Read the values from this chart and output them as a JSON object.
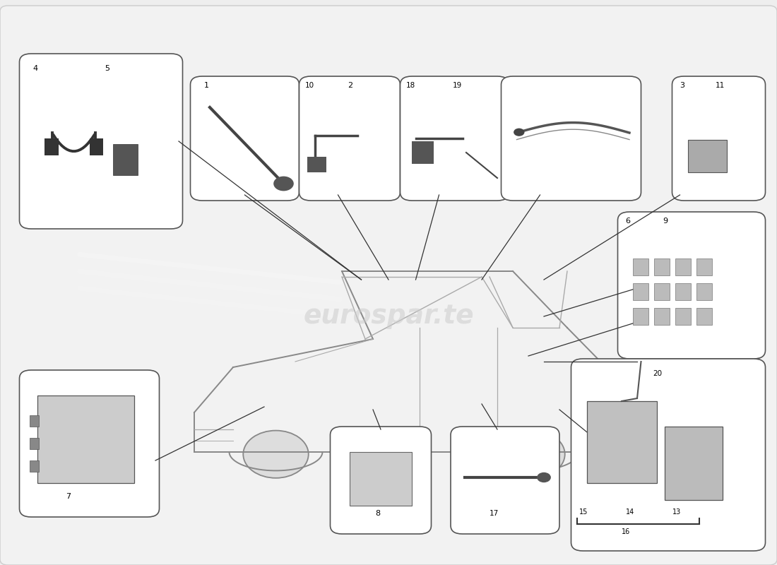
{
  "background_color": "#eeeeee",
  "box_fill": "#ffffff",
  "box_edge": "#555555",
  "line_color": "#333333",
  "car_line": "#888888",
  "car_detail": "#aaaaaa",
  "watermark": "eurospar.te",
  "watermark_color": "#cccccc"
}
